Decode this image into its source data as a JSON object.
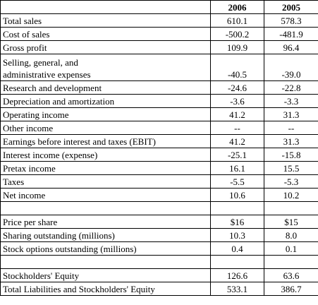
{
  "table": {
    "headers": [
      "",
      "2006",
      "2005"
    ],
    "rows": [
      {
        "label": "Total sales",
        "v2006": "610.1",
        "v2005": "578.3"
      },
      {
        "label": "Cost of sales",
        "v2006": "-500.2",
        "v2005": "-481.9"
      },
      {
        "label": "Gross profit",
        "v2006": "109.9",
        "v2005": "96.4"
      },
      {
        "label_line1": "Selling, general, and",
        "label_line2": "administrative expenses",
        "v2006": "-40.5",
        "v2005": "-39.0"
      },
      {
        "label": "Research and development",
        "v2006": "-24.6",
        "v2005": "-22.8"
      },
      {
        "label": "Depreciation and amortization",
        "v2006": "-3.6",
        "v2005": "-3.3"
      },
      {
        "label": "Operating income",
        "v2006": "41.2",
        "v2005": "31.3"
      },
      {
        "label": "Other income",
        "v2006": "--",
        "v2005": "--"
      },
      {
        "label": "Earnings before interest and taxes (EBIT)",
        "v2006": "41.2",
        "v2005": "31.3"
      },
      {
        "label": "Interest income (expense)",
        "v2006": "-25.1",
        "v2005": "-15.8"
      },
      {
        "label": "Pretax income",
        "v2006": "16.1",
        "v2005": "15.5"
      },
      {
        "label": "Taxes",
        "v2006": "-5.5",
        "v2005": "-5.3"
      },
      {
        "label": "Net income",
        "v2006": "10.6",
        "v2005": "10.2"
      },
      {
        "label": "",
        "v2006": "",
        "v2005": ""
      },
      {
        "label": "Price per share",
        "v2006": "$16",
        "v2005": "$15"
      },
      {
        "label": "Sharing outstanding (millions)",
        "v2006": "10.3",
        "v2005": "8.0"
      },
      {
        "label": "Stock options outstanding (millions)",
        "v2006": "0.4",
        "v2005": "0.1"
      },
      {
        "label": "",
        "v2006": "",
        "v2005": ""
      },
      {
        "label": "Stockholders' Equity",
        "v2006": "126.6",
        "v2005": "63.6"
      },
      {
        "label": "Total Liabilities and Stockholders' Equity",
        "v2006": "533.1",
        "v2005": "386.7"
      }
    ]
  }
}
